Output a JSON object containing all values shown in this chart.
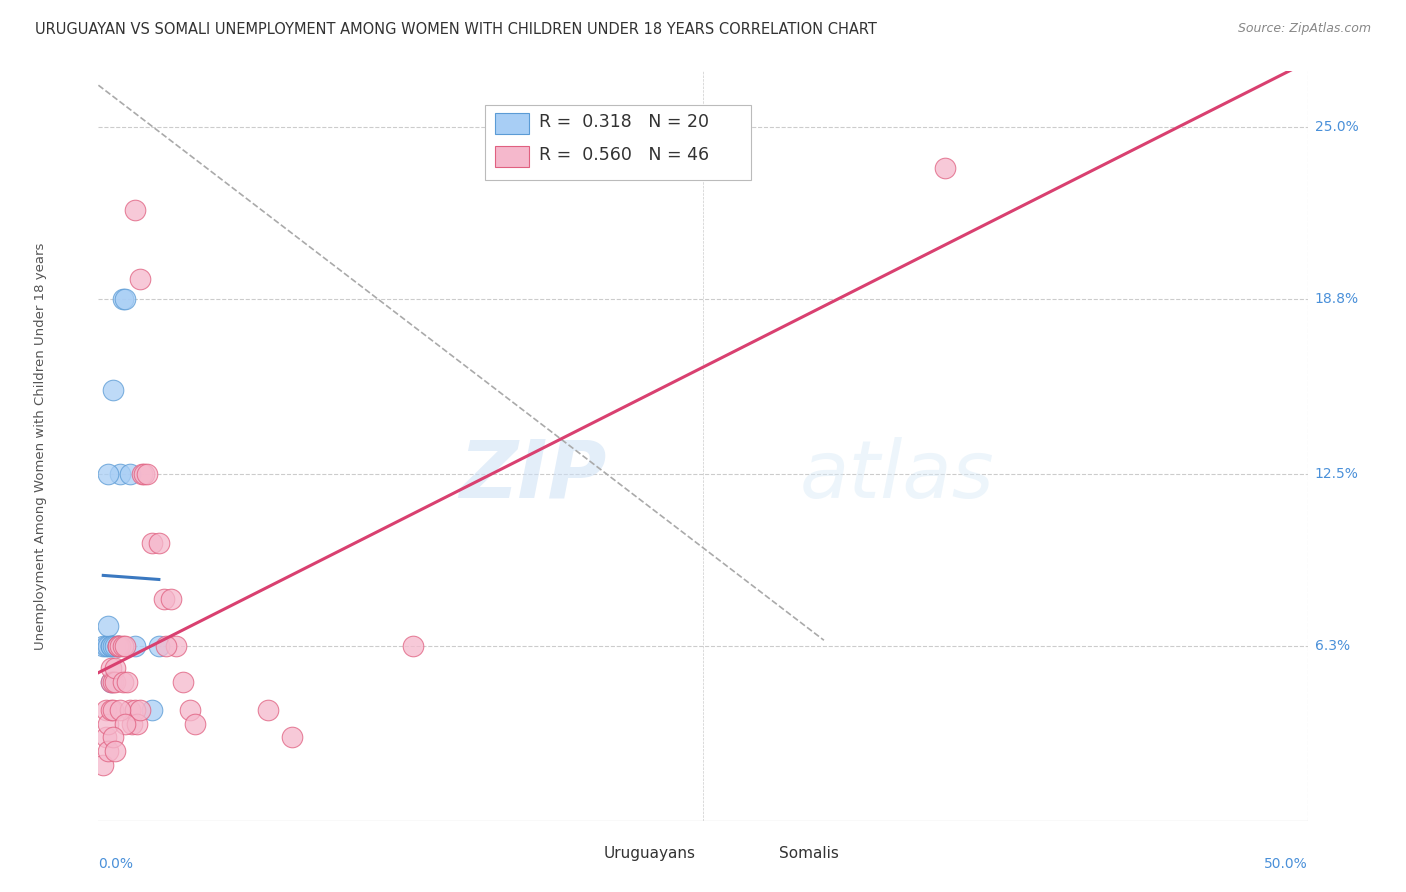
{
  "title": "URUGUAYAN VS SOMALI UNEMPLOYMENT AMONG WOMEN WITH CHILDREN UNDER 18 YEARS CORRELATION CHART",
  "source": "Source: ZipAtlas.com",
  "ylabel": "Unemployment Among Women with Children Under 18 years",
  "ytick_labels": [
    "6.3%",
    "12.5%",
    "18.8%",
    "25.0%"
  ],
  "ytick_values": [
    0.063,
    0.125,
    0.188,
    0.25
  ],
  "xlim": [
    0.0,
    0.5
  ],
  "ylim": [
    0.0,
    0.27
  ],
  "uruguayan_R": "0.318",
  "uruguayan_N": "20",
  "somali_R": "0.560",
  "somali_N": "46",
  "uruguayan_color": "#a8cef5",
  "somali_color": "#f5b8cc",
  "uruguayan_edge_color": "#5b9bd5",
  "somali_edge_color": "#e06080",
  "uruguayan_line_color": "#3a78c0",
  "somali_line_color": "#d94070",
  "dashed_line_color": "#aaaaaa",
  "background_color": "#ffffff",
  "grid_color": "#cccccc",
  "uruguayan_points": [
    [
      0.002,
      0.063
    ],
    [
      0.003,
      0.063
    ],
    [
      0.004,
      0.063
    ],
    [
      0.004,
      0.07
    ],
    [
      0.005,
      0.063
    ],
    [
      0.005,
      0.063
    ],
    [
      0.005,
      0.05
    ],
    [
      0.006,
      0.063
    ],
    [
      0.007,
      0.063
    ],
    [
      0.008,
      0.063
    ],
    [
      0.008,
      0.063
    ],
    [
      0.009,
      0.125
    ],
    [
      0.01,
      0.188
    ],
    [
      0.011,
      0.188
    ],
    [
      0.006,
      0.155
    ],
    [
      0.004,
      0.125
    ],
    [
      0.013,
      0.125
    ],
    [
      0.015,
      0.063
    ],
    [
      0.025,
      0.063
    ],
    [
      0.022,
      0.04
    ]
  ],
  "somali_points": [
    [
      0.002,
      0.02
    ],
    [
      0.003,
      0.03
    ],
    [
      0.003,
      0.04
    ],
    [
      0.004,
      0.025
    ],
    [
      0.004,
      0.035
    ],
    [
      0.005,
      0.04
    ],
    [
      0.005,
      0.05
    ],
    [
      0.005,
      0.055
    ],
    [
      0.006,
      0.04
    ],
    [
      0.006,
      0.05
    ],
    [
      0.007,
      0.05
    ],
    [
      0.007,
      0.055
    ],
    [
      0.008,
      0.063
    ],
    [
      0.008,
      0.063
    ],
    [
      0.009,
      0.063
    ],
    [
      0.01,
      0.063
    ],
    [
      0.01,
      0.05
    ],
    [
      0.011,
      0.063
    ],
    [
      0.012,
      0.05
    ],
    [
      0.013,
      0.04
    ],
    [
      0.014,
      0.035
    ],
    [
      0.015,
      0.04
    ],
    [
      0.016,
      0.035
    ],
    [
      0.017,
      0.04
    ],
    [
      0.018,
      0.125
    ],
    [
      0.019,
      0.125
    ],
    [
      0.015,
      0.22
    ],
    [
      0.017,
      0.195
    ],
    [
      0.02,
      0.125
    ],
    [
      0.022,
      0.1
    ],
    [
      0.025,
      0.1
    ],
    [
      0.027,
      0.08
    ],
    [
      0.03,
      0.08
    ],
    [
      0.032,
      0.063
    ],
    [
      0.035,
      0.05
    ],
    [
      0.038,
      0.04
    ],
    [
      0.009,
      0.04
    ],
    [
      0.011,
      0.035
    ],
    [
      0.006,
      0.03
    ],
    [
      0.007,
      0.025
    ],
    [
      0.028,
      0.063
    ],
    [
      0.04,
      0.035
    ],
    [
      0.35,
      0.235
    ],
    [
      0.13,
      0.063
    ],
    [
      0.07,
      0.04
    ],
    [
      0.08,
      0.03
    ]
  ],
  "watermark_zip": "ZIP",
  "watermark_atlas": "atlas",
  "title_fontsize": 10.5,
  "label_fontsize": 9.5,
  "tick_fontsize": 10,
  "legend_fontsize": 12.5
}
